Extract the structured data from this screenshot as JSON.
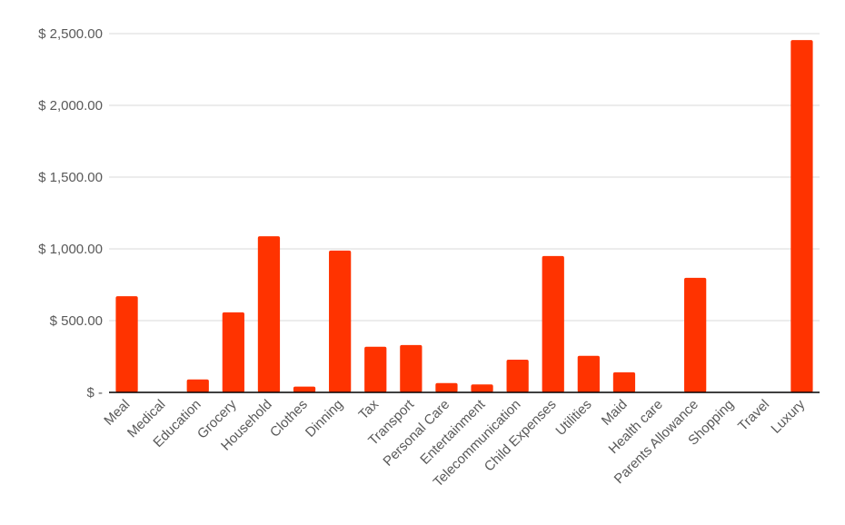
{
  "chart_data": {
    "type": "bar",
    "title": "",
    "xlabel": "",
    "ylabel": "",
    "categories": [
      "Meal",
      "Medical",
      "Education",
      "Grocery",
      "Household",
      "Clothes",
      "Dinning",
      "Tax",
      "Transport",
      "Personal Care",
      "Entertainment",
      "Telecommunication",
      "Child Expenses",
      "Utilities",
      "Maid",
      "Health care",
      "Parents Allowance",
      "Shopping",
      "Travel",
      "Luxury"
    ],
    "values": [
      670,
      0,
      90,
      558,
      1088,
      40,
      988,
      318,
      330,
      65,
      55,
      228,
      950,
      255,
      140,
      0,
      798,
      0,
      0,
      2455
    ],
    "ylim": [
      0,
      2500
    ],
    "yticks": [
      0,
      500,
      1000,
      1500,
      2000,
      2500
    ],
    "ytick_labels": [
      "$ -",
      "$ 500.00",
      "$ 1,000.00",
      "$ 1,500.00",
      "$ 2,000.00",
      "$ 2,500.00"
    ],
    "grid": true,
    "legend": "none",
    "bar_color": "#ff3300"
  }
}
